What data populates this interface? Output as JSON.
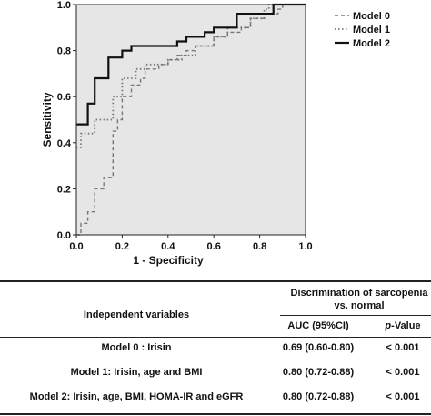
{
  "chart_data": {
    "type": "line",
    "xlabel": "1 - Specificity",
    "ylabel": "Sensitivity",
    "xlim": [
      0,
      1
    ],
    "ylim": [
      0,
      1
    ],
    "xticks": [
      "0.0",
      "0.2",
      "0.4",
      "0.6",
      "0.8",
      "1.0"
    ],
    "yticks": [
      "0.0",
      "0.2",
      "0.4",
      "0.6",
      "0.8",
      "1.0"
    ],
    "grid": false,
    "legend_position": "top-right, outside plot",
    "background_color": "#e6e6e6",
    "series": [
      {
        "name": "Model 0",
        "style": "dashed",
        "color": "#777777",
        "x": [
          0,
          0.02,
          0.02,
          0.05,
          0.05,
          0.08,
          0.08,
          0.12,
          0.12,
          0.16,
          0.16,
          0.18,
          0.18,
          0.2,
          0.2,
          0.24,
          0.24,
          0.28,
          0.28,
          0.3,
          0.3,
          0.36,
          0.36,
          0.4,
          0.4,
          0.44,
          0.44,
          0.48,
          0.48,
          0.52,
          0.52,
          0.6,
          0.6,
          0.66,
          0.66,
          0.72,
          0.72,
          0.76,
          0.76,
          0.82,
          0.82,
          0.88,
          0.88,
          0.9,
          0.9,
          1
        ],
        "y": [
          0,
          0,
          0.05,
          0.05,
          0.1,
          0.1,
          0.2,
          0.2,
          0.25,
          0.25,
          0.45,
          0.45,
          0.5,
          0.5,
          0.6,
          0.6,
          0.65,
          0.65,
          0.68,
          0.68,
          0.72,
          0.72,
          0.74,
          0.74,
          0.76,
          0.76,
          0.78,
          0.78,
          0.8,
          0.8,
          0.82,
          0.82,
          0.86,
          0.86,
          0.88,
          0.88,
          0.9,
          0.9,
          0.94,
          0.94,
          0.96,
          0.96,
          0.98,
          0.98,
          1,
          1
        ]
      },
      {
        "name": "Model 1",
        "style": "dotted",
        "color": "#777777",
        "x": [
          0,
          0.02,
          0.02,
          0.08,
          0.08,
          0.16,
          0.16,
          0.2,
          0.2,
          0.26,
          0.26,
          0.3,
          0.3,
          0.4,
          0.4,
          0.46,
          0.46,
          0.52,
          0.52,
          0.6,
          0.6,
          0.66,
          0.66,
          0.76,
          0.76,
          0.82,
          0.82,
          0.84,
          0.84,
          1
        ],
        "y": [
          0.38,
          0.38,
          0.44,
          0.44,
          0.5,
          0.5,
          0.6,
          0.6,
          0.68,
          0.68,
          0.72,
          0.72,
          0.74,
          0.74,
          0.76,
          0.76,
          0.78,
          0.78,
          0.82,
          0.82,
          0.86,
          0.86,
          0.9,
          0.9,
          0.94,
          0.94,
          0.98,
          0.98,
          1,
          1
        ]
      },
      {
        "name": "Model 2",
        "style": "solid",
        "color": "#111111",
        "x": [
          0,
          0.05,
          0.05,
          0.08,
          0.08,
          0.14,
          0.14,
          0.2,
          0.2,
          0.24,
          0.24,
          0.44,
          0.44,
          0.48,
          0.48,
          0.56,
          0.56,
          0.6,
          0.6,
          0.7,
          0.7,
          0.86,
          0.86,
          0.9,
          0.9,
          1
        ],
        "y": [
          0.48,
          0.48,
          0.57,
          0.57,
          0.68,
          0.68,
          0.77,
          0.77,
          0.8,
          0.8,
          0.82,
          0.82,
          0.84,
          0.84,
          0.86,
          0.86,
          0.88,
          0.88,
          0.9,
          0.9,
          0.96,
          0.96,
          1,
          1,
          1,
          1
        ]
      }
    ]
  },
  "table": {
    "header": {
      "independent_variables": "Independent variables",
      "discrimination_line1": "Discrimination of sarcopenia",
      "discrimination_line2": "vs. normal",
      "auc": "AUC (95%CI)",
      "p_value_italic": "p",
      "p_value_rest": "-Value"
    },
    "rows": [
      {
        "model": "Model 0 : Irisin",
        "auc": "0.69 (0.60-0.80)",
        "p": "< 0.001"
      },
      {
        "model": "Model 1: Irisin, age and BMI",
        "auc": "0.80 (0.72-0.88)",
        "p": "< 0.001"
      },
      {
        "model": "Model 2: Irisin, age, BMI, HOMA-IR and eGFR",
        "auc": "0.80 (0.72-0.88)",
        "p": "< 0.001"
      }
    ]
  }
}
